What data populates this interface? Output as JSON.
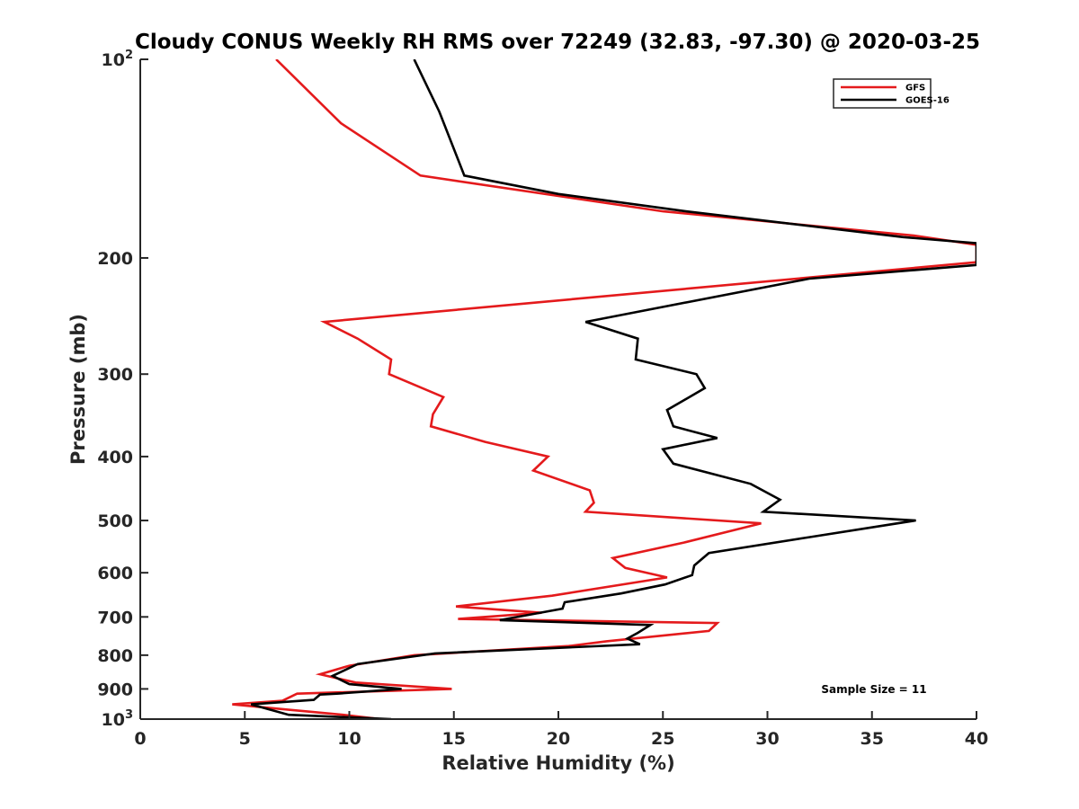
{
  "chart_data": {
    "type": "line",
    "title": "Cloudy CONUS Weekly RH RMS over 72249 (32.83, -97.30) @ 2020-03-25",
    "xlabel": "Relative Humidity (%)",
    "ylabel": "Pressure (mb)",
    "xlim": [
      0,
      40
    ],
    "ylim": [
      1000,
      100
    ],
    "y_scale": "log",
    "y_reversed": true,
    "x_ticks": [
      0,
      5,
      10,
      15,
      20,
      25,
      30,
      35,
      40
    ],
    "x_tick_labels": [
      "0",
      "5",
      "10",
      "15",
      "20",
      "25",
      "30",
      "35",
      "40"
    ],
    "y_ticks": [
      100,
      200,
      300,
      400,
      500,
      600,
      700,
      800,
      900,
      1000
    ],
    "y_tick_labels": [
      {
        "base": "10",
        "exp": "2"
      },
      {
        "base": "200",
        "exp": ""
      },
      {
        "base": "300",
        "exp": ""
      },
      {
        "base": "400",
        "exp": ""
      },
      {
        "base": "500",
        "exp": ""
      },
      {
        "base": "600",
        "exp": ""
      },
      {
        "base": "700",
        "exp": ""
      },
      {
        "base": "800",
        "exp": ""
      },
      {
        "base": "900",
        "exp": ""
      },
      {
        "base": "10",
        "exp": "3"
      }
    ],
    "grid": false,
    "legend_position": "top-right",
    "annotation": "Sample Size = 11",
    "series": [
      {
        "name": "GFS",
        "color": "#e41a1c",
        "points": [
          [
            6.5,
            100
          ],
          [
            9.6,
            125
          ],
          [
            13.4,
            150
          ],
          [
            25,
            170
          ],
          [
            37,
            185
          ],
          [
            40,
            191
          ],
          [
            40,
            203
          ],
          [
            8.8,
            250
          ],
          [
            10.4,
            265
          ],
          [
            12,
            285
          ],
          [
            11.9,
            300
          ],
          [
            14.5,
            325
          ],
          [
            14,
            345
          ],
          [
            13.9,
            360
          ],
          [
            16.5,
            380
          ],
          [
            19.5,
            400
          ],
          [
            18.8,
            420
          ],
          [
            21.5,
            450
          ],
          [
            21.7,
            470
          ],
          [
            21.3,
            485
          ],
          [
            29.7,
            505
          ],
          [
            26,
            540
          ],
          [
            22.6,
            570
          ],
          [
            23.2,
            590
          ],
          [
            25.2,
            610
          ],
          [
            19.7,
            650
          ],
          [
            15.1,
            675
          ],
          [
            19.2,
            690
          ],
          [
            15.2,
            705
          ],
          [
            27.6,
            715
          ],
          [
            27.2,
            735
          ],
          [
            22.3,
            762
          ],
          [
            20.5,
            775
          ],
          [
            13.1,
            800
          ],
          [
            10,
            830
          ],
          [
            8.6,
            855
          ],
          [
            10.3,
            880
          ],
          [
            14.9,
            900
          ],
          [
            7.5,
            915
          ],
          [
            6.8,
            938
          ],
          [
            4.4,
            950
          ],
          [
            7.1,
            968
          ],
          [
            9.7,
            985
          ],
          [
            11.5,
            1000
          ]
        ]
      },
      {
        "name": "GOES-16",
        "color": "#000000",
        "points": [
          [
            13.1,
            100
          ],
          [
            14.3,
            120
          ],
          [
            15.5,
            150
          ],
          [
            20,
            160
          ],
          [
            26.1,
            170
          ],
          [
            36.5,
            186
          ],
          [
            40,
            190
          ],
          [
            40,
            205
          ],
          [
            32,
            215
          ],
          [
            21.3,
            250
          ],
          [
            23.8,
            265
          ],
          [
            23.7,
            285
          ],
          [
            26.6,
            300
          ],
          [
            27,
            315
          ],
          [
            25.2,
            340
          ],
          [
            25.5,
            360
          ],
          [
            27.6,
            375
          ],
          [
            25,
            390
          ],
          [
            25.5,
            410
          ],
          [
            29.2,
            440
          ],
          [
            30.6,
            465
          ],
          [
            29.8,
            485
          ],
          [
            37.1,
            500
          ],
          [
            32,
            530
          ],
          [
            27.2,
            560
          ],
          [
            26.5,
            585
          ],
          [
            26.4,
            605
          ],
          [
            25.1,
            625
          ],
          [
            23,
            645
          ],
          [
            20.3,
            665
          ],
          [
            20.2,
            680
          ],
          [
            17.2,
            708
          ],
          [
            24.4,
            720
          ],
          [
            23.8,
            740
          ],
          [
            23.3,
            755
          ],
          [
            23.9,
            770
          ],
          [
            14.1,
            795
          ],
          [
            10.4,
            825
          ],
          [
            9.2,
            860
          ],
          [
            10,
            885
          ],
          [
            12.5,
            900
          ],
          [
            9.4,
            915
          ],
          [
            8.6,
            918
          ],
          [
            8.3,
            935
          ],
          [
            5.3,
            950
          ],
          [
            7.1,
            985
          ],
          [
            12,
            1000
          ]
        ]
      }
    ]
  }
}
